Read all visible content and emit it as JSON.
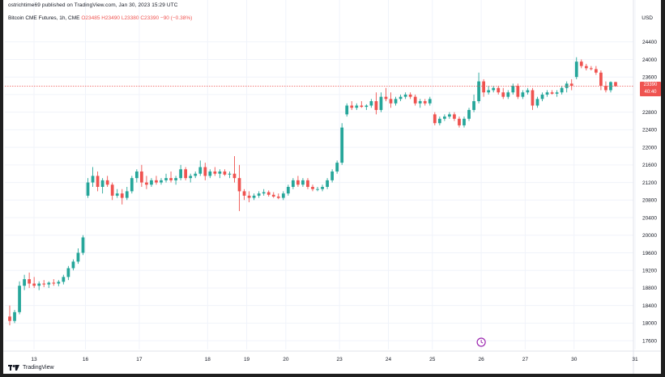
{
  "header": {
    "text": "ostrichtime69 published on TradingView.com, Jan 30, 2023 15:29 UTC"
  },
  "legend": {
    "symbol": "Bitcoin CME Futures, 1h, CME",
    "ohlc": "O23485  H23490  L23380  C23390  −90 (−0.38%)"
  },
  "axis": {
    "currency": "USD"
  },
  "price_tag": {
    "price": "23390",
    "countdown": "40:40"
  },
  "footer": {
    "brand": "TradingView"
  },
  "event_marker": {
    "icon": "clock-icon"
  },
  "colors": {
    "up": "#26a69a",
    "down": "#ef5350",
    "grid": "#f0f3fa",
    "axis_text": "#131722",
    "last_price_line": "#ef5350"
  },
  "chart_data": {
    "type": "candlestick",
    "symbol": "Bitcoin CME Futures",
    "interval": "1h",
    "exchange": "CME",
    "ylim": [
      17400,
      24800
    ],
    "y_ticks": [
      17600,
      18000,
      18400,
      18800,
      19200,
      19600,
      20000,
      20400,
      20800,
      21200,
      21600,
      22000,
      22400,
      22800,
      23200,
      23600,
      24000,
      24400
    ],
    "x_ticks": [
      "13",
      "16",
      "17",
      "18",
      "19",
      "20",
      "23",
      "24",
      "25",
      "26",
      "27",
      "30",
      "31"
    ],
    "last_price": 23390,
    "candles": [
      {
        "day": "13",
        "o": 18150,
        "h": 18400,
        "l": 17950,
        "c": 18050
      },
      {
        "day": "13",
        "o": 18050,
        "h": 18300,
        "l": 18000,
        "c": 18250
      },
      {
        "day": "13",
        "o": 18250,
        "h": 18950,
        "l": 18200,
        "c": 18850
      },
      {
        "day": "13",
        "o": 18850,
        "h": 19100,
        "l": 18750,
        "c": 19000
      },
      {
        "day": "13",
        "o": 19000,
        "h": 19150,
        "l": 18800,
        "c": 18900
      },
      {
        "day": "13",
        "o": 18900,
        "h": 19050,
        "l": 18800,
        "c": 18850
      },
      {
        "day": "13",
        "o": 18850,
        "h": 18950,
        "l": 18750,
        "c": 18900
      },
      {
        "day": "13",
        "o": 18900,
        "h": 18980,
        "l": 18820,
        "c": 18880
      },
      {
        "day": "13",
        "o": 18880,
        "h": 18950,
        "l": 18800,
        "c": 18920
      },
      {
        "day": "13",
        "o": 18920,
        "h": 19000,
        "l": 18850,
        "c": 18900
      },
      {
        "day": "13",
        "o": 18900,
        "h": 18980,
        "l": 18840,
        "c": 18940
      },
      {
        "day": "13",
        "o": 18940,
        "h": 19100,
        "l": 18880,
        "c": 19050
      },
      {
        "day": "13",
        "o": 19050,
        "h": 19300,
        "l": 18980,
        "c": 19250
      },
      {
        "day": "13",
        "o": 19250,
        "h": 19450,
        "l": 19200,
        "c": 19400
      },
      {
        "day": "13",
        "o": 19400,
        "h": 19700,
        "l": 19350,
        "c": 19600
      },
      {
        "day": "13",
        "o": 19600,
        "h": 20000,
        "l": 19550,
        "c": 19950
      },
      {
        "day": "16",
        "o": 20900,
        "h": 21300,
        "l": 20850,
        "c": 21200
      },
      {
        "day": "16",
        "o": 21200,
        "h": 21550,
        "l": 21100,
        "c": 21350
      },
      {
        "day": "16",
        "o": 21350,
        "h": 21450,
        "l": 21000,
        "c": 21100
      },
      {
        "day": "16",
        "o": 21100,
        "h": 21300,
        "l": 20950,
        "c": 21250
      },
      {
        "day": "16",
        "o": 21250,
        "h": 21350,
        "l": 21100,
        "c": 21150
      },
      {
        "day": "16",
        "o": 21150,
        "h": 21200,
        "l": 20800,
        "c": 20900
      },
      {
        "day": "16",
        "o": 20900,
        "h": 21050,
        "l": 20850,
        "c": 20950
      },
      {
        "day": "16",
        "o": 20950,
        "h": 21050,
        "l": 20700,
        "c": 20850
      },
      {
        "day": "16",
        "o": 20850,
        "h": 21100,
        "l": 20800,
        "c": 21000
      },
      {
        "day": "16",
        "o": 21000,
        "h": 21350,
        "l": 20950,
        "c": 21300
      },
      {
        "day": "16",
        "o": 21300,
        "h": 21500,
        "l": 21200,
        "c": 21450
      },
      {
        "day": "17",
        "o": 21450,
        "h": 21600,
        "l": 21100,
        "c": 21200
      },
      {
        "day": "17",
        "o": 21200,
        "h": 21350,
        "l": 21050,
        "c": 21150
      },
      {
        "day": "17",
        "o": 21150,
        "h": 21300,
        "l": 21100,
        "c": 21250
      },
      {
        "day": "17",
        "o": 21250,
        "h": 21350,
        "l": 21150,
        "c": 21200
      },
      {
        "day": "17",
        "o": 21200,
        "h": 21300,
        "l": 21150,
        "c": 21250
      },
      {
        "day": "17",
        "o": 21250,
        "h": 21400,
        "l": 21200,
        "c": 21300
      },
      {
        "day": "17",
        "o": 21300,
        "h": 21450,
        "l": 21200,
        "c": 21250
      },
      {
        "day": "17",
        "o": 21250,
        "h": 21350,
        "l": 21150,
        "c": 21300
      },
      {
        "day": "17",
        "o": 21300,
        "h": 21600,
        "l": 21250,
        "c": 21500
      },
      {
        "day": "17",
        "o": 21500,
        "h": 21550,
        "l": 21250,
        "c": 21300
      },
      {
        "day": "17",
        "o": 21300,
        "h": 21400,
        "l": 21200,
        "c": 21350
      },
      {
        "day": "17",
        "o": 21350,
        "h": 21450,
        "l": 21300,
        "c": 21400
      },
      {
        "day": "17",
        "o": 21400,
        "h": 21700,
        "l": 21350,
        "c": 21550
      },
      {
        "day": "17",
        "o": 21550,
        "h": 21650,
        "l": 21250,
        "c": 21350
      },
      {
        "day": "18",
        "o": 21350,
        "h": 21500,
        "l": 21300,
        "c": 21450
      },
      {
        "day": "18",
        "o": 21450,
        "h": 21550,
        "l": 21350,
        "c": 21400
      },
      {
        "day": "18",
        "o": 21400,
        "h": 21500,
        "l": 21300,
        "c": 21450
      },
      {
        "day": "18",
        "o": 21450,
        "h": 21500,
        "l": 21350,
        "c": 21380
      },
      {
        "day": "18",
        "o": 21380,
        "h": 21450,
        "l": 21300,
        "c": 21400
      },
      {
        "day": "18",
        "o": 21400,
        "h": 21800,
        "l": 21200,
        "c": 21300
      },
      {
        "day": "18",
        "o": 21300,
        "h": 21600,
        "l": 20550,
        "c": 21000
      },
      {
        "day": "18",
        "o": 21000,
        "h": 21050,
        "l": 20800,
        "c": 20900
      },
      {
        "day": "19",
        "o": 20900,
        "h": 21000,
        "l": 20750,
        "c": 20850
      },
      {
        "day": "19",
        "o": 20850,
        "h": 20950,
        "l": 20800,
        "c": 20900
      },
      {
        "day": "19",
        "o": 20900,
        "h": 21000,
        "l": 20850,
        "c": 20950
      },
      {
        "day": "19",
        "o": 20950,
        "h": 21050,
        "l": 20900,
        "c": 20980
      },
      {
        "day": "19",
        "o": 20980,
        "h": 21020,
        "l": 20880,
        "c": 20920
      },
      {
        "day": "19",
        "o": 20920,
        "h": 20980,
        "l": 20850,
        "c": 20880
      },
      {
        "day": "19",
        "o": 20880,
        "h": 20950,
        "l": 20820,
        "c": 20850
      },
      {
        "day": "19",
        "o": 20850,
        "h": 21000,
        "l": 20800,
        "c": 20950
      },
      {
        "day": "20",
        "o": 20950,
        "h": 21150,
        "l": 20900,
        "c": 21100
      },
      {
        "day": "20",
        "o": 21100,
        "h": 21300,
        "l": 21050,
        "c": 21250
      },
      {
        "day": "20",
        "o": 21250,
        "h": 21350,
        "l": 21100,
        "c": 21150
      },
      {
        "day": "20",
        "o": 21150,
        "h": 21300,
        "l": 21100,
        "c": 21250
      },
      {
        "day": "20",
        "o": 21250,
        "h": 21300,
        "l": 21050,
        "c": 21100
      },
      {
        "day": "20",
        "o": 21100,
        "h": 21150,
        "l": 21000,
        "c": 21050
      },
      {
        "day": "20",
        "o": 21050,
        "h": 21100,
        "l": 21000,
        "c": 21050
      },
      {
        "day": "20",
        "o": 21050,
        "h": 21150,
        "l": 21000,
        "c": 21100
      },
      {
        "day": "20",
        "o": 21100,
        "h": 21300,
        "l": 21050,
        "c": 21250
      },
      {
        "day": "20",
        "o": 21250,
        "h": 21500,
        "l": 21200,
        "c": 21450
      },
      {
        "day": "20",
        "o": 21450,
        "h": 21700,
        "l": 21400,
        "c": 21650
      },
      {
        "day": "23",
        "o": 21650,
        "h": 22550,
        "l": 21600,
        "c": 22450
      },
      {
        "day": "23",
        "o": 22750,
        "h": 23000,
        "l": 22700,
        "c": 22950
      },
      {
        "day": "23",
        "o": 22950,
        "h": 23050,
        "l": 22850,
        "c": 22900
      },
      {
        "day": "23",
        "o": 22900,
        "h": 23000,
        "l": 22850,
        "c": 22950
      },
      {
        "day": "23",
        "o": 22950,
        "h": 23050,
        "l": 22900,
        "c": 22920
      },
      {
        "day": "23",
        "o": 22920,
        "h": 22980,
        "l": 22850,
        "c": 22950
      },
      {
        "day": "23",
        "o": 22950,
        "h": 23100,
        "l": 22900,
        "c": 23050
      },
      {
        "day": "23",
        "o": 23050,
        "h": 23250,
        "l": 22750,
        "c": 22850
      },
      {
        "day": "23",
        "o": 22850,
        "h": 23250,
        "l": 22800,
        "c": 23150
      },
      {
        "day": "23",
        "o": 23150,
        "h": 23350,
        "l": 23050,
        "c": 23100
      },
      {
        "day": "24",
        "o": 23100,
        "h": 23250,
        "l": 22900,
        "c": 23000
      },
      {
        "day": "24",
        "o": 23000,
        "h": 23150,
        "l": 22950,
        "c": 23100
      },
      {
        "day": "24",
        "o": 23100,
        "h": 23200,
        "l": 23050,
        "c": 23150
      },
      {
        "day": "24",
        "o": 23150,
        "h": 23250,
        "l": 23100,
        "c": 23200
      },
      {
        "day": "24",
        "o": 23200,
        "h": 23250,
        "l": 23100,
        "c": 23150
      },
      {
        "day": "24",
        "o": 23150,
        "h": 23200,
        "l": 22950,
        "c": 23000
      },
      {
        "day": "24",
        "o": 23000,
        "h": 23100,
        "l": 22900,
        "c": 23050
      },
      {
        "day": "24",
        "o": 23050,
        "h": 23100,
        "l": 22950,
        "c": 23000
      },
      {
        "day": "24",
        "o": 23000,
        "h": 23150,
        "l": 22950,
        "c": 23100
      },
      {
        "day": "25",
        "o": 22750,
        "h": 22800,
        "l": 22500,
        "c": 22550
      },
      {
        "day": "25",
        "o": 22550,
        "h": 22700,
        "l": 22500,
        "c": 22650
      },
      {
        "day": "25",
        "o": 22650,
        "h": 22750,
        "l": 22600,
        "c": 22700
      },
      {
        "day": "25",
        "o": 22700,
        "h": 22800,
        "l": 22650,
        "c": 22750
      },
      {
        "day": "25",
        "o": 22750,
        "h": 22800,
        "l": 22600,
        "c": 22650
      },
      {
        "day": "25",
        "o": 22650,
        "h": 22700,
        "l": 22450,
        "c": 22500
      },
      {
        "day": "25",
        "o": 22500,
        "h": 22700,
        "l": 22450,
        "c": 22650
      },
      {
        "day": "25",
        "o": 22650,
        "h": 22900,
        "l": 22600,
        "c": 22850
      },
      {
        "day": "25",
        "o": 22850,
        "h": 23200,
        "l": 22800,
        "c": 23050
      },
      {
        "day": "25",
        "o": 23050,
        "h": 23700,
        "l": 23000,
        "c": 23500
      },
      {
        "day": "26",
        "o": 23500,
        "h": 23550,
        "l": 23150,
        "c": 23250
      },
      {
        "day": "26",
        "o": 23250,
        "h": 23400,
        "l": 23200,
        "c": 23300
      },
      {
        "day": "26",
        "o": 23300,
        "h": 23400,
        "l": 23250,
        "c": 23350
      },
      {
        "day": "26",
        "o": 23350,
        "h": 23400,
        "l": 23200,
        "c": 23250
      },
      {
        "day": "26",
        "o": 23250,
        "h": 23350,
        "l": 23100,
        "c": 23150
      },
      {
        "day": "26",
        "o": 23150,
        "h": 23300,
        "l": 23100,
        "c": 23250
      },
      {
        "day": "26",
        "o": 23250,
        "h": 23450,
        "l": 23200,
        "c": 23400
      },
      {
        "day": "26",
        "o": 23400,
        "h": 23450,
        "l": 23100,
        "c": 23150
      },
      {
        "day": "26",
        "o": 23150,
        "h": 23300,
        "l": 23100,
        "c": 23250
      },
      {
        "day": "27",
        "o": 23250,
        "h": 23350,
        "l": 23200,
        "c": 23300
      },
      {
        "day": "27",
        "o": 23300,
        "h": 23350,
        "l": 22850,
        "c": 22950
      },
      {
        "day": "27",
        "o": 22950,
        "h": 23150,
        "l": 22900,
        "c": 23100
      },
      {
        "day": "27",
        "o": 23100,
        "h": 23250,
        "l": 23050,
        "c": 23200
      },
      {
        "day": "27",
        "o": 23200,
        "h": 23300,
        "l": 23150,
        "c": 23250
      },
      {
        "day": "27",
        "o": 23250,
        "h": 23300,
        "l": 23200,
        "c": 23220
      },
      {
        "day": "27",
        "o": 23220,
        "h": 23300,
        "l": 23150,
        "c": 23250
      },
      {
        "day": "27",
        "o": 23250,
        "h": 23400,
        "l": 23200,
        "c": 23350
      },
      {
        "day": "27",
        "o": 23350,
        "h": 23500,
        "l": 23250,
        "c": 23450
      },
      {
        "day": "27",
        "o": 23450,
        "h": 23550,
        "l": 23300,
        "c": 23400
      },
      {
        "day": "30",
        "o": 23600,
        "h": 24050,
        "l": 23550,
        "c": 23950
      },
      {
        "day": "30",
        "o": 23950,
        "h": 24000,
        "l": 23800,
        "c": 23850
      },
      {
        "day": "30",
        "o": 23850,
        "h": 23900,
        "l": 23750,
        "c": 23800
      },
      {
        "day": "30",
        "o": 23800,
        "h": 23850,
        "l": 23750,
        "c": 23780
      },
      {
        "day": "30",
        "o": 23780,
        "h": 23850,
        "l": 23650,
        "c": 23700
      },
      {
        "day": "30",
        "o": 23700,
        "h": 23750,
        "l": 23300,
        "c": 23400
      },
      {
        "day": "30",
        "o": 23400,
        "h": 23500,
        "l": 23250,
        "c": 23300
      },
      {
        "day": "30",
        "o": 23300,
        "h": 23500,
        "l": 23250,
        "c": 23485
      },
      {
        "day": "30",
        "o": 23485,
        "h": 23490,
        "l": 23380,
        "c": 23390
      }
    ]
  }
}
